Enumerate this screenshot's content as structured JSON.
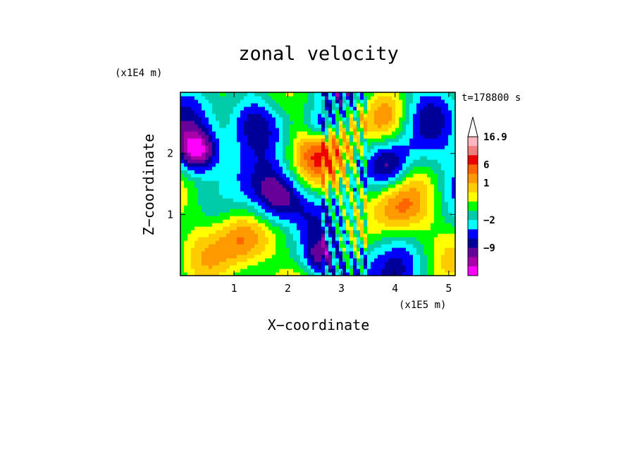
{
  "chart_data": {
    "type": "heatmap",
    "title": "zonal velocity",
    "xlabel": "X−coordinate",
    "ylabel": "Z−coordinate",
    "x_unit": "(x1E5 m)",
    "y_unit": "(x1E4 m)",
    "time_label": "t=178800 s",
    "x_ticks": [
      "1",
      "2",
      "3",
      "4",
      "5"
    ],
    "y_ticks": [
      "1",
      "2"
    ],
    "xlim": [
      0,
      5.12
    ],
    "ylim": [
      0,
      3.0
    ],
    "colorbar": {
      "labels": [
        "16.9",
        "6",
        "1",
        "−2",
        "−9"
      ],
      "colors": [
        "#ffb6c1",
        "#f08080",
        "#ee0000",
        "#ff6600",
        "#ff9900",
        "#ffcc00",
        "#ffff00",
        "#00ff00",
        "#00ccaa",
        "#00ffff",
        "#0000ff",
        "#000099",
        "#660099",
        "#aa00aa",
        "#ff00ff"
      ]
    }
  }
}
